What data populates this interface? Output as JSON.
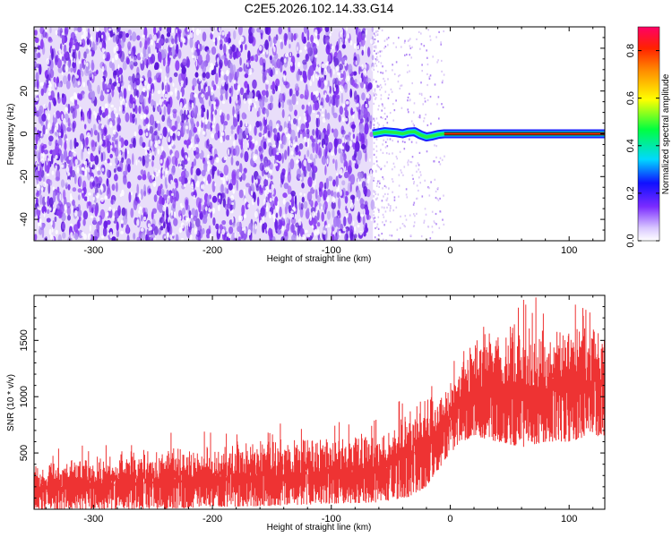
{
  "title": "C2E5.2026.102.14.33.G14",
  "chart_data": [
    {
      "type": "heatmap",
      "title": "C2E5.2026.102.14.33.G14",
      "xlabel": "Height of straight line (km)",
      "ylabel": "Frequency (Hz)",
      "xlim": [
        -350,
        130
      ],
      "ylim": [
        -50,
        50
      ],
      "xticks": [
        -300,
        -200,
        -100,
        0,
        100
      ],
      "yticks": [
        -40,
        -20,
        0,
        20,
        40
      ],
      "grid": false,
      "noisy_region_x": [
        -350,
        -65
      ],
      "sparse_scatter_x": [
        -65,
        -5
      ],
      "coherent_line": {
        "x": [
          -65,
          -55,
          -45,
          -40,
          -35,
          -30,
          -25,
          -20,
          -15,
          -10,
          -5,
          0,
          20,
          40,
          60,
          80,
          100,
          120,
          130
        ],
        "frequency": [
          0,
          1,
          0.5,
          0,
          0.8,
          1,
          -0.5,
          -1.5,
          -1,
          -0.3,
          0,
          0,
          0,
          0,
          0,
          0,
          0,
          0,
          0
        ]
      },
      "colorbar": {
        "label": "Normalized spectral amplitude",
        "range": [
          0,
          0.9
        ],
        "ticks": [
          0.0,
          0.2,
          0.4,
          0.6,
          0.8
        ],
        "tick_labels": [
          "0.0",
          "0.2",
          "0.4",
          "0.6",
          "0.8"
        ],
        "colormap": "rainbow"
      }
    },
    {
      "type": "line",
      "xlabel": "Height of straight line (km)",
      "ylabel": "SNR (10 * v/v)",
      "xlim": [
        -350,
        130
      ],
      "ylim": [
        0,
        1900
      ],
      "xticks": [
        -300,
        -200,
        -100,
        0,
        100
      ],
      "yticks": [
        500,
        1000,
        1500
      ],
      "series": [
        {
          "name": "SNR",
          "color": "#ee3333",
          "x": [
            -350,
            -300,
            -250,
            -200,
            -150,
            -100,
            -60,
            -40,
            -30,
            -20,
            -10,
            0,
            10,
            20,
            40,
            60,
            80,
            100,
            120,
            130
          ],
          "lower": [
            0,
            0,
            0,
            20,
            30,
            50,
            60,
            100,
            120,
            200,
            350,
            500,
            600,
            650,
            600,
            550,
            600,
            600,
            650,
            650
          ],
          "upper": [
            400,
            480,
            540,
            560,
            620,
            640,
            660,
            820,
            960,
            1000,
            1050,
            1150,
            1400,
            1550,
            1600,
            1650,
            1650,
            1650,
            1620,
            1600
          ]
        }
      ]
    }
  ]
}
